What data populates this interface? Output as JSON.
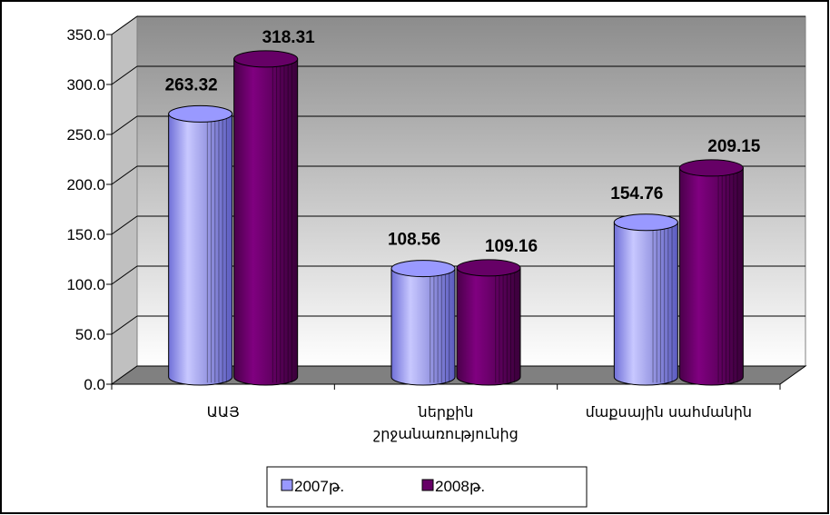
{
  "chart_data": {
    "type": "bar",
    "variant": "3d-cylinder",
    "categories": [
      [
        "ԱԱՅ"
      ],
      [
        "ներքին",
        "շրջանառությունից"
      ],
      [
        "մաքսային սահմանին"
      ]
    ],
    "series": [
      {
        "name": "2007թ.",
        "color": "#9999ff",
        "values": [
          263.32,
          108.56,
          154.76
        ],
        "labels": [
          "263.32",
          "108.56",
          "154.76"
        ]
      },
      {
        "name": "2008թ.",
        "color": "#660066",
        "values": [
          318.31,
          109.16,
          209.15
        ],
        "labels": [
          "318.31",
          "109.16",
          "209.15"
        ]
      }
    ],
    "ylim": [
      0,
      350
    ],
    "yticks": [
      "0.0",
      "50.0",
      "100.0",
      "150.0",
      "200.0",
      "250.0",
      "300.0",
      "350.0"
    ],
    "grid": true,
    "wall_color": "#c0c0c0",
    "legend_position": "bottom"
  }
}
